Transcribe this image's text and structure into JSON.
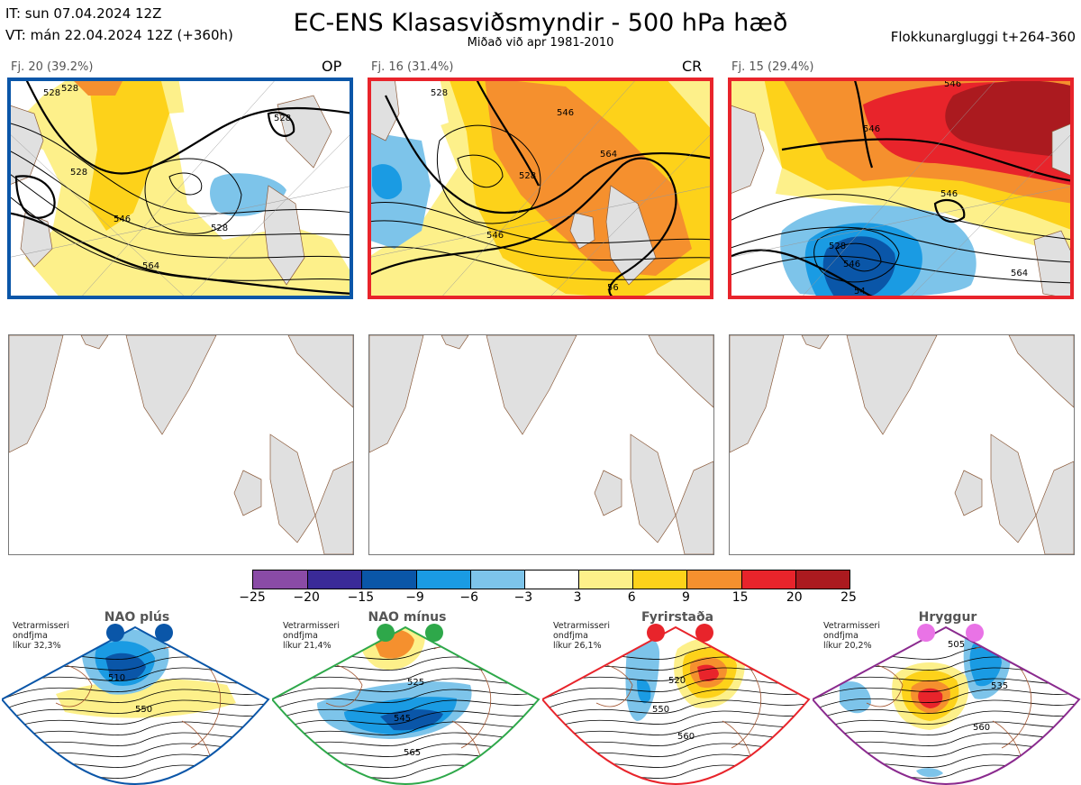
{
  "header": {
    "it_line": "IT: sun 07.04.2024 12Z",
    "vt_line": "VT: mán 22.04.2024 12Z  (+360h)",
    "title": "EC-ENS Klasasviðsmyndir - 500 hPa hæð",
    "subtitle": "Miðað við apr 1981-2010",
    "window": "Flokkunargluggi t+264-360"
  },
  "clusters": [
    {
      "label": "Fj. 20 (39.2%)",
      "tag": "OP",
      "frame_color": "#0a56a8",
      "contours": [
        "528",
        "528",
        "528",
        "546",
        "564",
        "528",
        "528"
      ]
    },
    {
      "label": "Fj. 16 (31.4%)",
      "tag": "CR",
      "frame_color": "#e8242b",
      "contours": [
        "546",
        "528",
        "564",
        "546",
        "56",
        "528"
      ]
    },
    {
      "label": "Fj. 15 (29.4%)",
      "tag": "",
      "frame_color": "#e8242b",
      "contours": [
        "546",
        "546",
        "528",
        "546",
        "564",
        "54",
        "546"
      ]
    }
  ],
  "colorbar": {
    "colors": [
      "#8a4ba6",
      "#3a2a98",
      "#0a56a8",
      "#1a9be3",
      "#7dc4ea",
      "#ffffff",
      "#fdf08a",
      "#fdd21a",
      "#f5902e",
      "#e8242b",
      "#ab1a1f"
    ],
    "labels": [
      "−25",
      "−20",
      "−15",
      "−9",
      "−6",
      "−3",
      "3",
      "6",
      "9",
      "15",
      "20",
      "25"
    ]
  },
  "regimes": [
    {
      "name": "NAO plús",
      "info": "Vetrarmisseri\nondfjma\nlíkur 32,3%",
      "frame_color": "#0a56a8",
      "dot_color": "#0a56a8",
      "labels": [
        "510",
        "550"
      ]
    },
    {
      "name": "NAO mínus",
      "info": "Vetrarmisseri\nondfjma\nlíkur 21,4%",
      "frame_color": "#2ea84a",
      "dot_color": "#2ea84a",
      "labels": [
        "525",
        "545",
        "565"
      ]
    },
    {
      "name": "Fyrirstaða",
      "info": "Vetrarmisseri\nondfjma\nlíkur 26,1%",
      "frame_color": "#e8242b",
      "dot_color": "#e8242b",
      "labels": [
        "520",
        "550",
        "560"
      ]
    },
    {
      "name": "Hryggur",
      "info": "Vetrarmisseri\nondfjma\nlíkur 20,2%",
      "frame_color": "#8a2a8e",
      "dot_color": "#e973e6",
      "labels": [
        "505",
        "535",
        "560"
      ]
    }
  ]
}
